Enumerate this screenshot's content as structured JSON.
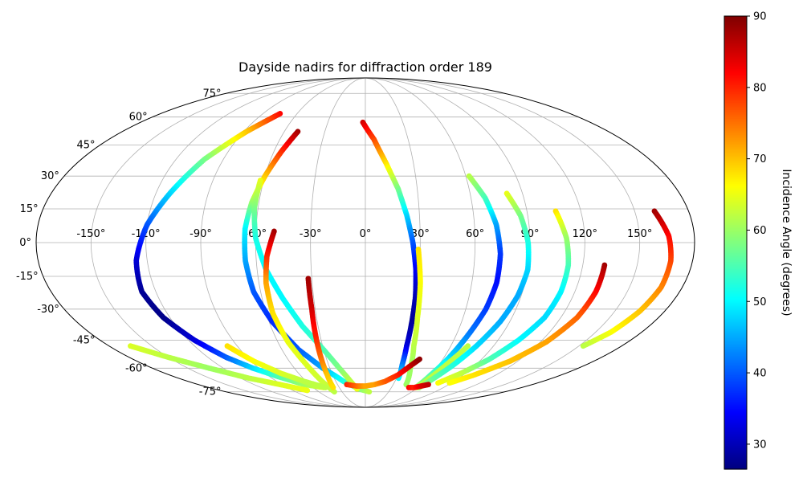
{
  "chart_data": {
    "type": "scatter",
    "projection": "mollweide",
    "title": "Dayside nadirs for diffraction order 189",
    "grid": true,
    "lon_ticks": [
      "-150°",
      "-120°",
      "-90°",
      "-60°",
      "-30°",
      "0°",
      "30°",
      "60°",
      "90°",
      "120°",
      "150°"
    ],
    "lat_ticks": [
      "75°",
      "60°",
      "45°",
      "30°",
      "15°",
      "0°",
      "-15°",
      "-30°",
      "-45°",
      "-60°",
      "-75°"
    ],
    "lon_tick_values": [
      -150,
      -120,
      -90,
      -60,
      -30,
      0,
      30,
      60,
      90,
      120,
      150
    ],
    "lat_tick_values": [
      75,
      60,
      45,
      30,
      15,
      0,
      -15,
      -30,
      -45,
      -60,
      -75
    ],
    "colorbar": {
      "label": "Incidence Angle (degrees)",
      "colormap": "jet",
      "range": [
        26.5,
        90
      ],
      "ticks": [
        30,
        40,
        50,
        60,
        70,
        80,
        90
      ]
    },
    "series": [
      {
        "points": [
          [
            -75,
            62,
            82
          ],
          [
            -88,
            52,
            70
          ],
          [
            -102,
            38,
            58
          ],
          [
            -112,
            22,
            48
          ],
          [
            -120,
            8,
            40
          ],
          [
            -126,
            -8,
            32
          ],
          [
            -128,
            -22,
            28
          ],
          [
            -124,
            -34,
            27
          ],
          [
            -116,
            -45,
            32
          ],
          [
            -106,
            -54,
            40
          ],
          [
            -95,
            -60,
            48
          ],
          [
            -82,
            -65,
            55
          ],
          [
            -66,
            -70,
            60
          ],
          [
            -48,
            -72,
            64
          ]
        ]
      },
      {
        "points": [
          [
            -50,
            52,
            88
          ],
          [
            -55,
            42,
            80
          ],
          [
            -60,
            30,
            70
          ],
          [
            -64,
            18,
            60
          ],
          [
            -66,
            6,
            50
          ],
          [
            -66,
            -8,
            45
          ],
          [
            -64,
            -22,
            40
          ],
          [
            -58,
            -36,
            37
          ],
          [
            -48,
            -50,
            40
          ],
          [
            -36,
            -60,
            45
          ],
          [
            -22,
            -68,
            52
          ],
          [
            -8,
            -73,
            58
          ],
          [
            5,
            -75,
            62
          ]
        ]
      },
      {
        "points": [
          [
            -62,
            28,
            65
          ],
          [
            -62,
            15,
            58
          ],
          [
            -60,
            2,
            52
          ],
          [
            -55,
            -12,
            50
          ],
          [
            -48,
            -25,
            50
          ],
          [
            -40,
            -38,
            52
          ],
          [
            -30,
            -50,
            55
          ],
          [
            -22,
            -60,
            58
          ],
          [
            -15,
            -68,
            62
          ],
          [
            -10,
            -73,
            65
          ]
        ]
      },
      {
        "points": [
          [
            -50,
            5,
            88
          ],
          [
            -54,
            -6,
            80
          ],
          [
            -56,
            -18,
            72
          ],
          [
            -56,
            -32,
            68
          ],
          [
            -53,
            -46,
            65
          ],
          [
            -48,
            -58,
            64
          ],
          [
            -44,
            -68,
            63
          ],
          [
            -40,
            -75,
            62
          ]
        ]
      },
      {
        "points": [
          [
            -32,
            -16,
            88
          ],
          [
            -32,
            -30,
            85
          ],
          [
            -33,
            -44,
            80
          ],
          [
            -34,
            -55,
            75
          ],
          [
            -35,
            -64,
            70
          ],
          [
            -37,
            -72,
            68
          ]
        ]
      },
      {
        "points": [
          [
            -2,
            57,
            85
          ],
          [
            6,
            48,
            78
          ],
          [
            13,
            36,
            68
          ],
          [
            19,
            24,
            58
          ],
          [
            23,
            12,
            48
          ],
          [
            26,
            0,
            40
          ],
          [
            28,
            -12,
            34
          ],
          [
            29,
            -24,
            30
          ],
          [
            29,
            -36,
            28
          ],
          [
            29,
            -48,
            32
          ],
          [
            30,
            -58,
            42
          ],
          [
            32,
            -66,
            50
          ]
        ]
      },
      {
        "points": [
          [
            29,
            -3,
            68
          ],
          [
            31,
            -18,
            66
          ],
          [
            32,
            -34,
            64
          ],
          [
            34,
            -48,
            62
          ],
          [
            38,
            -60,
            60
          ],
          [
            44,
            -70,
            60
          ]
        ]
      },
      {
        "points": [
          [
            -165,
            -48,
            64
          ],
          [
            -150,
            -54,
            62
          ],
          [
            -132,
            -60,
            60
          ],
          [
            -112,
            -66,
            62
          ],
          [
            -92,
            -70,
            64
          ],
          [
            -72,
            -74,
            65
          ]
        ]
      },
      {
        "points": [
          [
            -97,
            -48,
            68
          ],
          [
            -88,
            -56,
            66
          ],
          [
            -76,
            -63,
            64
          ],
          [
            -62,
            -68,
            62
          ],
          [
            -46,
            -72,
            62
          ]
        ]
      },
      {
        "points": [
          [
            -20,
            -70,
            80
          ],
          [
            -10,
            -71,
            76
          ],
          [
            0,
            -71,
            72
          ],
          [
            10,
            -70,
            72
          ],
          [
            20,
            -68,
            76
          ],
          [
            30,
            -64,
            80
          ],
          [
            38,
            -58,
            86
          ],
          [
            42,
            -55,
            89
          ]
        ]
      },
      {
        "points": [
          [
            62,
            30,
            62
          ],
          [
            68,
            20,
            55
          ],
          [
            72,
            8,
            45
          ],
          [
            74,
            -5,
            38
          ],
          [
            74,
            -18,
            35
          ],
          [
            72,
            -30,
            38
          ],
          [
            68,
            -42,
            42
          ],
          [
            64,
            -54,
            48
          ],
          [
            60,
            -64,
            55
          ],
          [
            58,
            -72,
            60
          ]
        ]
      },
      {
        "points": [
          [
            72,
            -48,
            62
          ],
          [
            66,
            -58,
            62
          ],
          [
            62,
            -66,
            62
          ],
          [
            60,
            -72,
            62
          ]
        ]
      },
      {
        "points": [
          [
            81,
            22,
            65
          ],
          [
            86,
            12,
            58
          ],
          [
            89,
            0,
            52
          ],
          [
            90,
            -12,
            48
          ],
          [
            88,
            -24,
            45
          ],
          [
            84,
            -36,
            45
          ],
          [
            78,
            -48,
            48
          ],
          [
            72,
            -58,
            52
          ],
          [
            66,
            -66,
            56
          ],
          [
            62,
            -72,
            60
          ]
        ]
      },
      {
        "points": [
          [
            106,
            14,
            68
          ],
          [
            110,
            2,
            60
          ],
          [
            112,
            -10,
            55
          ],
          [
            112,
            -22,
            50
          ],
          [
            110,
            -34,
            48
          ],
          [
            104,
            -45,
            50
          ],
          [
            96,
            -55,
            55
          ],
          [
            86,
            -63,
            62
          ],
          [
            76,
            -69,
            66
          ]
        ]
      },
      {
        "points": [
          [
            132,
            -10,
            88
          ],
          [
            132,
            -22,
            82
          ],
          [
            130,
            -34,
            76
          ],
          [
            124,
            -46,
            72
          ],
          [
            114,
            -56,
            70
          ],
          [
            100,
            -64,
            68
          ],
          [
            88,
            -69,
            66
          ]
        ]
      },
      {
        "points": [
          [
            161,
            14,
            88
          ],
          [
            166,
            3,
            82
          ],
          [
            168,
            -8,
            78
          ],
          [
            168,
            -20,
            74
          ],
          [
            165,
            -31,
            70
          ],
          [
            160,
            -41,
            66
          ],
          [
            153,
            -48,
            62
          ]
        ]
      },
      {
        "points": [
          [
            50,
            -72,
            82
          ],
          [
            56,
            -72,
            80
          ],
          [
            62,
            -71,
            84
          ],
          [
            68,
            -70,
            86
          ]
        ]
      }
    ]
  }
}
